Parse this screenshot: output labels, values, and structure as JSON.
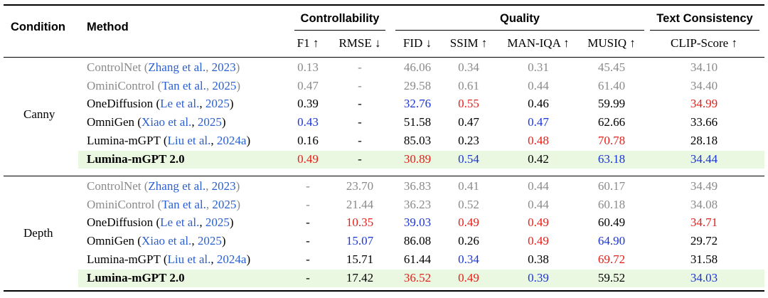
{
  "header": {
    "condition": "Condition",
    "method": "Method",
    "groups": {
      "controllability": "Controllability",
      "quality": "Quality",
      "text_consistency": "Text Consistency"
    },
    "metrics": [
      "F1 ↑",
      "RMSE ↓",
      "FID ↓",
      "SSIM ↑",
      "MAN-IQA ↑",
      "MUSIQ ↑",
      "CLIP-Score ↑"
    ]
  },
  "colors": {
    "best": "#1b35d4",
    "second": "#e3201a",
    "baseline": "#8a8a8a",
    "citation": "#2a5fd0",
    "highlight": "#eaf7e1"
  },
  "sections": [
    {
      "condition": "Canny",
      "rows": [
        {
          "name": "ControlNet",
          "cite": [
            {
              "text": "Zhang et al."
            },
            {
              "text": ", "
            },
            {
              "text": "2023"
            }
          ],
          "cells": [
            {
              "v": "0.13"
            },
            {
              "v": "-"
            },
            {
              "v": "46.06"
            },
            {
              "v": "0.34"
            },
            {
              "v": "0.31"
            },
            {
              "v": "45.45"
            },
            {
              "v": "34.10"
            }
          ],
          "style": "gray"
        },
        {
          "name": "OminiControl",
          "cite": [
            {
              "text": "Tan et al."
            },
            {
              "text": ", "
            },
            {
              "text": "2025"
            }
          ],
          "cells": [
            {
              "v": "0.47"
            },
            {
              "v": "-"
            },
            {
              "v": "29.58"
            },
            {
              "v": "0.61"
            },
            {
              "v": "0.44"
            },
            {
              "v": "61.40"
            },
            {
              "v": "34.40"
            }
          ],
          "style": "gray"
        },
        {
          "name": "OneDiffusion",
          "cite": [
            {
              "text": "Le et al."
            },
            {
              "text": ", "
            },
            {
              "text": "2025"
            }
          ],
          "cells": [
            {
              "v": "0.39"
            },
            {
              "v": "-"
            },
            {
              "v": "32.76",
              "c": "blue"
            },
            {
              "v": "0.55",
              "c": "red"
            },
            {
              "v": "0.46"
            },
            {
              "v": "59.99"
            },
            {
              "v": "34.99",
              "c": "red"
            }
          ]
        },
        {
          "name": "OmniGen",
          "cite": [
            {
              "text": "Xiao et al."
            },
            {
              "text": ", "
            },
            {
              "text": "2025"
            }
          ],
          "cells": [
            {
              "v": "0.43",
              "c": "blue"
            },
            {
              "v": "-"
            },
            {
              "v": "51.58"
            },
            {
              "v": "0.47"
            },
            {
              "v": "0.47",
              "c": "blue"
            },
            {
              "v": "62.66"
            },
            {
              "v": "33.66"
            }
          ]
        },
        {
          "name": "Lumina-mGPT",
          "cite": [
            {
              "text": "Liu et al."
            },
            {
              "text": ", "
            },
            {
              "text": "2024a"
            }
          ],
          "cells": [
            {
              "v": "0.16"
            },
            {
              "v": "-"
            },
            {
              "v": "85.03"
            },
            {
              "v": "0.23"
            },
            {
              "v": "0.48",
              "c": "red"
            },
            {
              "v": "70.78",
              "c": "red"
            },
            {
              "v": "28.18"
            }
          ]
        },
        {
          "name": "Lumina-mGPT 2.0",
          "cite": null,
          "cells": [
            {
              "v": "0.49",
              "c": "red"
            },
            {
              "v": "-"
            },
            {
              "v": "30.89",
              "c": "red"
            },
            {
              "v": "0.54",
              "c": "blue"
            },
            {
              "v": "0.42"
            },
            {
              "v": "63.18",
              "c": "blue"
            },
            {
              "v": "34.44",
              "c": "blue"
            }
          ],
          "style": "ours"
        }
      ]
    },
    {
      "condition": "Depth",
      "rows": [
        {
          "name": "ControlNet",
          "cite": [
            {
              "text": "Zhang et al."
            },
            {
              "text": ", "
            },
            {
              "text": "2023"
            }
          ],
          "cells": [
            {
              "v": "-"
            },
            {
              "v": "23.70"
            },
            {
              "v": "36.83"
            },
            {
              "v": "0.41"
            },
            {
              "v": "0.44"
            },
            {
              "v": "60.17"
            },
            {
              "v": "34.49"
            }
          ],
          "style": "gray"
        },
        {
          "name": "OminiControl",
          "cite": [
            {
              "text": "Tan et al."
            },
            {
              "text": ", "
            },
            {
              "text": "2025"
            }
          ],
          "cells": [
            {
              "v": "-"
            },
            {
              "v": "21.44"
            },
            {
              "v": "36.23"
            },
            {
              "v": "0.52"
            },
            {
              "v": "0.44"
            },
            {
              "v": "60.18"
            },
            {
              "v": "34.08"
            }
          ],
          "style": "gray"
        },
        {
          "name": "OneDiffusion",
          "cite": [
            {
              "text": "Le et al."
            },
            {
              "text": ", "
            },
            {
              "text": "2025"
            }
          ],
          "cells": [
            {
              "v": "-"
            },
            {
              "v": "10.35",
              "c": "red"
            },
            {
              "v": "39.03",
              "c": "blue"
            },
            {
              "v": "0.49",
              "c": "red"
            },
            {
              "v": "0.49",
              "c": "red"
            },
            {
              "v": "60.49"
            },
            {
              "v": "34.71",
              "c": "red"
            }
          ]
        },
        {
          "name": "OmniGen",
          "cite": [
            {
              "text": "Xiao et al."
            },
            {
              "text": ", "
            },
            {
              "text": "2025"
            }
          ],
          "cells": [
            {
              "v": "-"
            },
            {
              "v": "15.07",
              "c": "blue"
            },
            {
              "v": "86.08"
            },
            {
              "v": "0.26"
            },
            {
              "v": "0.49",
              "c": "red"
            },
            {
              "v": "64.90",
              "c": "blue"
            },
            {
              "v": "29.72"
            }
          ]
        },
        {
          "name": "Lumina-mGPT",
          "cite": [
            {
              "text": "Liu et al."
            },
            {
              "text": ", "
            },
            {
              "text": "2024a"
            }
          ],
          "cells": [
            {
              "v": "-"
            },
            {
              "v": "15.71"
            },
            {
              "v": "61.44"
            },
            {
              "v": "0.34",
              "c": "blue"
            },
            {
              "v": "0.38"
            },
            {
              "v": "69.72",
              "c": "red"
            },
            {
              "v": "31.58"
            }
          ]
        },
        {
          "name": "Lumina-mGPT 2.0",
          "cite": null,
          "cells": [
            {
              "v": "-"
            },
            {
              "v": "17.42"
            },
            {
              "v": "36.52",
              "c": "red"
            },
            {
              "v": "0.49",
              "c": "red"
            },
            {
              "v": "0.39",
              "c": "blue"
            },
            {
              "v": "59.52"
            },
            {
              "v": "34.03",
              "c": "blue"
            }
          ],
          "style": "ours"
        }
      ]
    }
  ]
}
